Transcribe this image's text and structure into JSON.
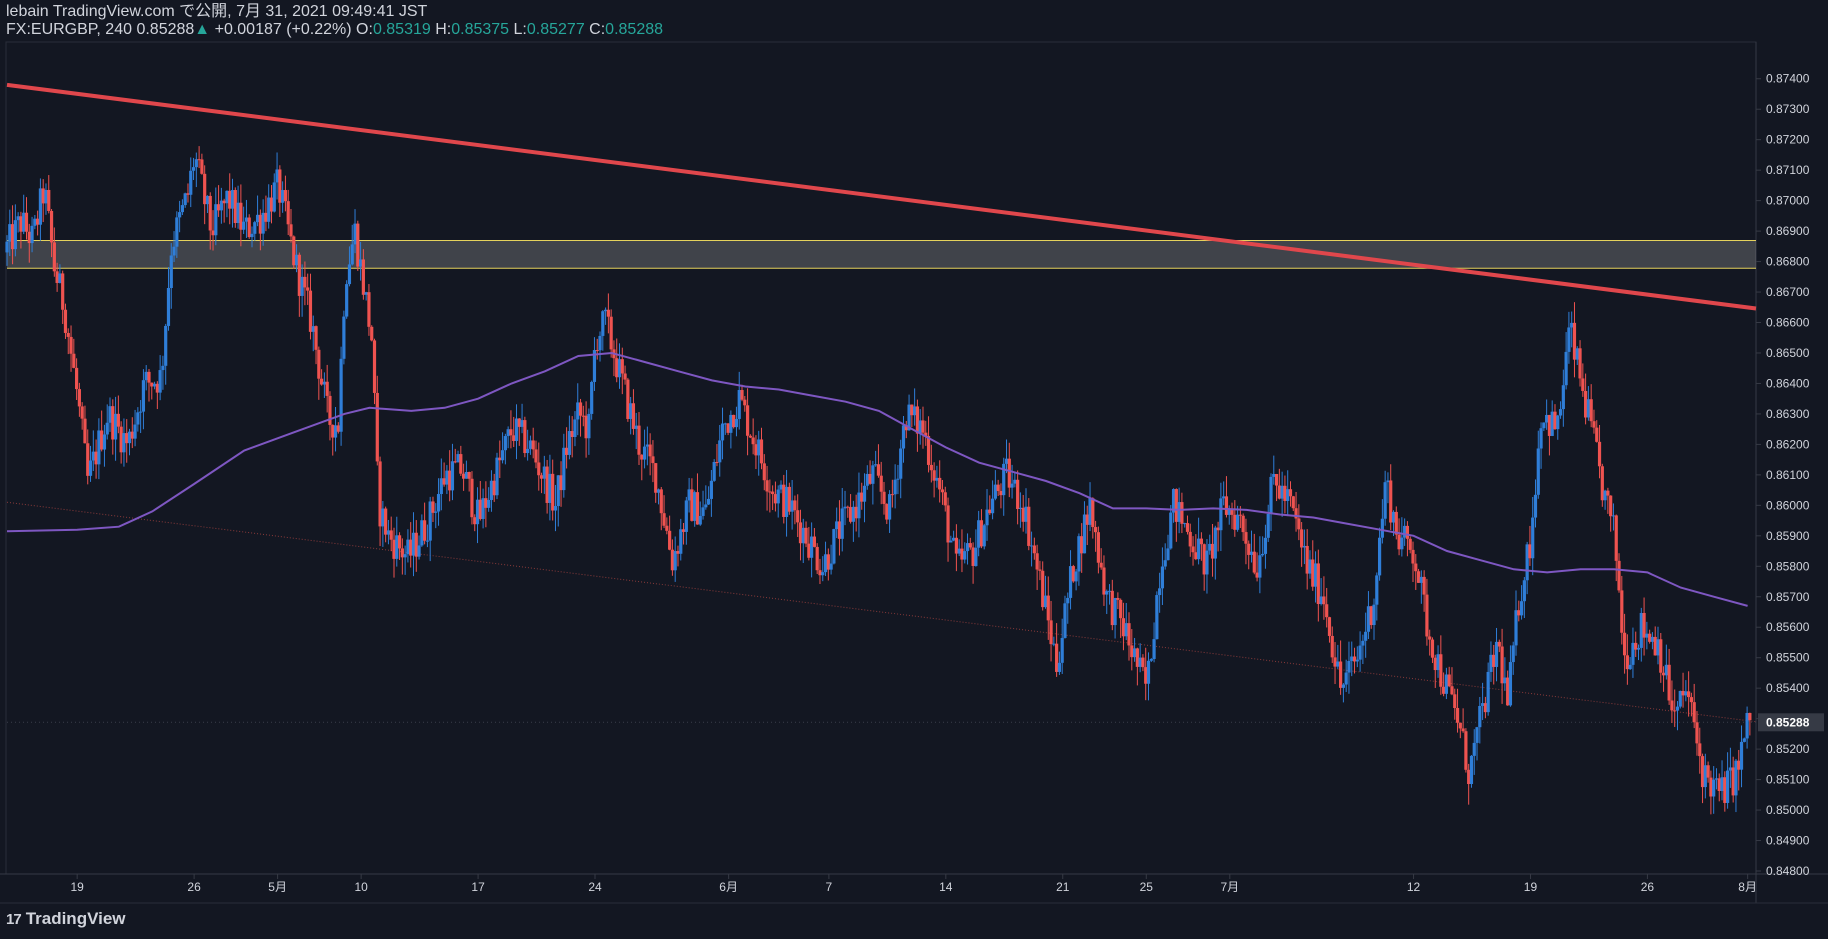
{
  "header": {
    "author": "lebain",
    "site": "TradingView.com",
    "published_prefix": "で公開,",
    "published_at": "7月 31, 2021 09:49:41 JST",
    "symbol": "FX:EURGBP,",
    "interval": "240",
    "last": "0.85288",
    "change_arrow": "▲",
    "change": "+0.00187 (+0.22%)",
    "o_label": "O:",
    "o_value": "0.85319",
    "h_label": "H:",
    "h_value": "0.85375",
    "l_label": "L:",
    "l_value": "0.85277",
    "c_label": "C:",
    "c_value": "0.85288"
  },
  "footer": {
    "brand": "TradingView"
  },
  "colors": {
    "background": "#131722",
    "grid": "#1e222d",
    "text": "#d1d4dc",
    "candle_up": "#2f7ed8",
    "candle_down": "#ef5350",
    "ma": "#7e57c2",
    "trendline": "#e0474c",
    "zone_border": "#e5d25c",
    "support_dotted": "#8a3a3a",
    "price_label_bg": "#363a45"
  },
  "chart_data": {
    "type": "candlestick",
    "symbol": "FX:EURGBP",
    "interval": "240",
    "y_range": [
      0.848,
      0.8745
    ],
    "y_ticks": [
      "0.87400",
      "0.87300",
      "0.87200",
      "0.87100",
      "0.87000",
      "0.86900",
      "0.86800",
      "0.86700",
      "0.86600",
      "0.86500",
      "0.86400",
      "0.86300",
      "0.86200",
      "0.86100",
      "0.86000",
      "0.85900",
      "0.85800",
      "0.85700",
      "0.85600",
      "0.85500",
      "0.85400",
      "0.85300",
      "0.85200",
      "0.85100",
      "0.85000",
      "0.84900",
      "0.84800"
    ],
    "current_price_label": "0.85288",
    "x_ticks": [
      {
        "label": "19",
        "day": 0
      },
      {
        "label": "26",
        "day": 7
      },
      {
        "label": "5月",
        "day": 12
      },
      {
        "label": "10",
        "day": 17
      },
      {
        "label": "17",
        "day": 24
      },
      {
        "label": "24",
        "day": 31
      },
      {
        "label": "6月",
        "day": 39
      },
      {
        "label": "7",
        "day": 45
      },
      {
        "label": "14",
        "day": 52
      },
      {
        "label": "21",
        "day": 59
      },
      {
        "label": "25",
        "day": 64
      },
      {
        "label": "7月",
        "day": 69
      },
      {
        "label": "12",
        "day": 80
      },
      {
        "label": "19",
        "day": 87
      },
      {
        "label": "26",
        "day": 94
      },
      {
        "label": "8月",
        "day": 100
      }
    ],
    "x_range": [
      -4.2,
      100.5
    ],
    "ohlc_keypoints": [
      [
        -4.2,
        0.8683
      ],
      [
        -3.2,
        0.8693
      ],
      [
        -2.5,
        0.8687
      ],
      [
        -1.8,
        0.8704
      ],
      [
        -1.2,
        0.8678
      ],
      [
        -0.6,
        0.8665
      ],
      [
        0.2,
        0.8635
      ],
      [
        0.8,
        0.8608
      ],
      [
        2.0,
        0.863
      ],
      [
        3.2,
        0.862
      ],
      [
        4.2,
        0.864
      ],
      [
        5.2,
        0.8642
      ],
      [
        5.8,
        0.8685
      ],
      [
        6.8,
        0.8702
      ],
      [
        7.2,
        0.8715
      ],
      [
        8.2,
        0.869
      ],
      [
        9.2,
        0.8701
      ],
      [
        10.2,
        0.869
      ],
      [
        11.2,
        0.8695
      ],
      [
        12.2,
        0.8705
      ],
      [
        13.2,
        0.868
      ],
      [
        14.2,
        0.866
      ],
      [
        15.2,
        0.8628
      ],
      [
        15.8,
        0.8627
      ],
      [
        16.2,
        0.8675
      ],
      [
        16.8,
        0.869
      ],
      [
        17.8,
        0.8655
      ],
      [
        18.2,
        0.86
      ],
      [
        18.8,
        0.859
      ],
      [
        20.0,
        0.8583
      ],
      [
        21.2,
        0.8595
      ],
      [
        22.2,
        0.861
      ],
      [
        23.2,
        0.8612
      ],
      [
        24.2,
        0.8595
      ],
      [
        25.2,
        0.861
      ],
      [
        26.2,
        0.8625
      ],
      [
        27.2,
        0.862
      ],
      [
        28.2,
        0.8608
      ],
      [
        28.8,
        0.86
      ],
      [
        29.5,
        0.862
      ],
      [
        30.2,
        0.863
      ],
      [
        30.8,
        0.8625
      ],
      [
        31.2,
        0.8655
      ],
      [
        31.8,
        0.866
      ],
      [
        32.8,
        0.864
      ],
      [
        33.8,
        0.862
      ],
      [
        34.8,
        0.861
      ],
      [
        35.8,
        0.8582
      ],
      [
        36.8,
        0.86
      ],
      [
        37.8,
        0.8598
      ],
      [
        38.8,
        0.8625
      ],
      [
        39.8,
        0.8635
      ],
      [
        40.8,
        0.862
      ],
      [
        41.8,
        0.8605
      ],
      [
        42.8,
        0.86
      ],
      [
        43.8,
        0.859
      ],
      [
        44.8,
        0.858
      ],
      [
        45.8,
        0.8592
      ],
      [
        46.8,
        0.86
      ],
      [
        47.8,
        0.861
      ],
      [
        48.8,
        0.8598
      ],
      [
        49.8,
        0.863
      ],
      [
        50.8,
        0.8625
      ],
      [
        51.8,
        0.8605
      ],
      [
        52.8,
        0.858
      ],
      [
        53.8,
        0.8585
      ],
      [
        54.8,
        0.86
      ],
      [
        55.8,
        0.861
      ],
      [
        56.8,
        0.86
      ],
      [
        57.8,
        0.8575
      ],
      [
        58.8,
        0.8548
      ],
      [
        59.8,
        0.858
      ],
      [
        60.8,
        0.86
      ],
      [
        61.8,
        0.857
      ],
      [
        62.8,
        0.856
      ],
      [
        63.8,
        0.8545
      ],
      [
        64.2,
        0.854
      ],
      [
        65.0,
        0.858
      ],
      [
        65.8,
        0.86
      ],
      [
        66.8,
        0.859
      ],
      [
        67.8,
        0.858
      ],
      [
        68.8,
        0.86
      ],
      [
        69.8,
        0.8595
      ],
      [
        70.8,
        0.858
      ],
      [
        71.8,
        0.8608
      ],
      [
        72.8,
        0.86
      ],
      [
        73.8,
        0.858
      ],
      [
        74.8,
        0.857
      ],
      [
        75.8,
        0.854
      ],
      [
        76.8,
        0.855
      ],
      [
        77.8,
        0.857
      ],
      [
        78.5,
        0.8608
      ],
      [
        79.2,
        0.859
      ],
      [
        80.2,
        0.8585
      ],
      [
        81.0,
        0.856
      ],
      [
        81.8,
        0.8545
      ],
      [
        82.8,
        0.853
      ],
      [
        83.5,
        0.8512
      ],
      [
        84.2,
        0.853
      ],
      [
        85.2,
        0.8555
      ],
      [
        85.8,
        0.8535
      ],
      [
        86.5,
        0.857
      ],
      [
        87.2,
        0.859
      ],
      [
        87.8,
        0.863
      ],
      [
        88.8,
        0.8625
      ],
      [
        89.5,
        0.8658
      ],
      [
        90.2,
        0.864
      ],
      [
        90.8,
        0.8625
      ],
      [
        91.5,
        0.8605
      ],
      [
        92.2,
        0.859
      ],
      [
        92.8,
        0.855
      ],
      [
        93.8,
        0.856
      ],
      [
        94.8,
        0.8555
      ],
      [
        95.8,
        0.853
      ],
      [
        96.5,
        0.854
      ],
      [
        97.5,
        0.8512
      ],
      [
        98.5,
        0.8505
      ],
      [
        99.5,
        0.8512
      ],
      [
        100.2,
        0.8529
      ]
    ],
    "moving_average": [
      [
        -4.2,
        0.85915
      ],
      [
        0,
        0.8592
      ],
      [
        2.5,
        0.8593
      ],
      [
        4.5,
        0.8598
      ],
      [
        7.0,
        0.8607
      ],
      [
        10.0,
        0.8618
      ],
      [
        13.0,
        0.8624
      ],
      [
        16.0,
        0.863
      ],
      [
        17.5,
        0.8632
      ],
      [
        20.0,
        0.8631
      ],
      [
        22.0,
        0.8632
      ],
      [
        24.0,
        0.8635
      ],
      [
        26.0,
        0.864
      ],
      [
        28.0,
        0.8644
      ],
      [
        30.0,
        0.8649
      ],
      [
        32.0,
        0.865
      ],
      [
        34.0,
        0.8647
      ],
      [
        36.0,
        0.8644
      ],
      [
        38.0,
        0.8641
      ],
      [
        40.0,
        0.8639
      ],
      [
        42.0,
        0.8638
      ],
      [
        44.0,
        0.8636
      ],
      [
        46.0,
        0.8634
      ],
      [
        48.0,
        0.8631
      ],
      [
        50.0,
        0.8625
      ],
      [
        52.0,
        0.8619
      ],
      [
        54.0,
        0.8614
      ],
      [
        56.0,
        0.8611
      ],
      [
        58.0,
        0.8608
      ],
      [
        60.0,
        0.8604
      ],
      [
        62.0,
        0.8599
      ],
      [
        64.0,
        0.8599
      ],
      [
        66.0,
        0.85985
      ],
      [
        68.0,
        0.8599
      ],
      [
        70.0,
        0.85985
      ],
      [
        72.0,
        0.8597
      ],
      [
        74.0,
        0.8596
      ],
      [
        76.0,
        0.8594
      ],
      [
        78.0,
        0.8592
      ],
      [
        80.0,
        0.859
      ],
      [
        82.0,
        0.8585
      ],
      [
        84.0,
        0.8582
      ],
      [
        86.0,
        0.8579
      ],
      [
        88.0,
        0.8578
      ],
      [
        90.0,
        0.8579
      ],
      [
        92.0,
        0.8579
      ],
      [
        94.0,
        0.8578
      ],
      [
        96.0,
        0.8573
      ],
      [
        98.0,
        0.857
      ],
      [
        100.0,
        0.8567
      ]
    ],
    "trendline": {
      "from": [
        -4.2,
        0.8738
      ],
      "to": [
        100.5,
        0.86646
      ]
    },
    "support_line": {
      "from": [
        -4.2,
        0.8601
      ],
      "to": [
        100.5,
        0.8529
      ]
    },
    "zone": {
      "top": 0.86869,
      "bottom": 0.86778
    },
    "current_price": 0.85288
  }
}
